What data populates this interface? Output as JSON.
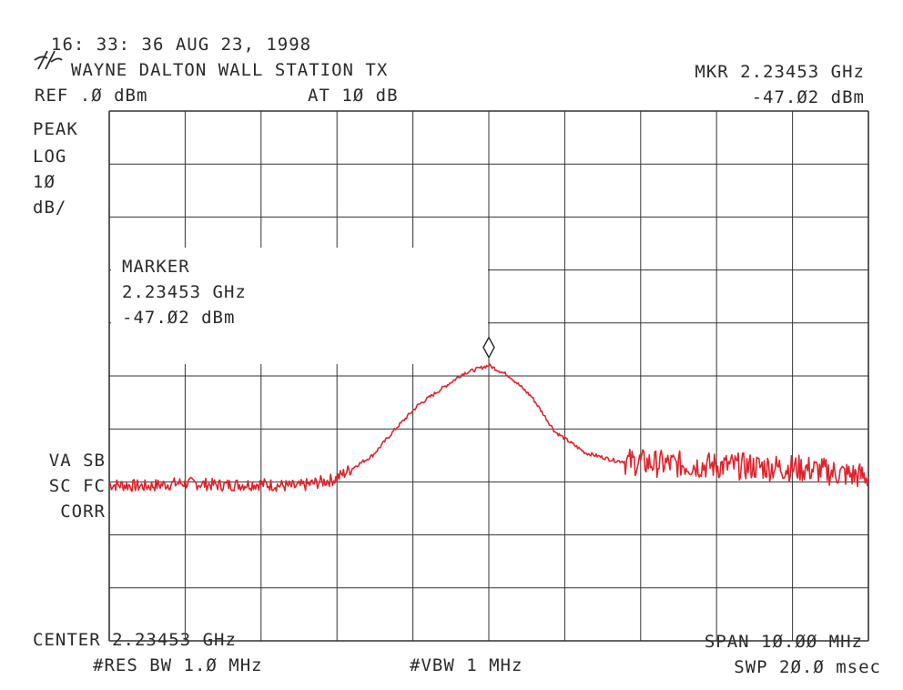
{
  "header": {
    "timestamp": "16: 33: 36 AUG 23, 1998",
    "title": "WAYNE DALTON WALL STATION TX",
    "ref_level": "REF .Ø dBm",
    "attenuation": "AT 1Ø dB",
    "marker_freq": "MKR 2.23453 GHz",
    "marker_level": "-47.Ø2 dBm"
  },
  "left_labels": {
    "detector": "PEAK",
    "scale": "LOG",
    "scale_value": "1Ø",
    "scale_unit": "dB/",
    "va_sb": "VA SB",
    "sc_fc": "SC FC",
    "corr": "CORR"
  },
  "marker_box": {
    "title": "MARKER",
    "freq": "2.23453 GHz",
    "level": "-47.Ø2 dBm"
  },
  "footer": {
    "center": "CENTER 2.23453 GHz",
    "span": "SPAN 1Ø.ØØ MHz",
    "res_bw": "#RES BW 1.Ø MHz",
    "vbw": "#VBW 1 MHz",
    "sweep": "SWP 2Ø.Ø msec"
  },
  "colors": {
    "trace": "#e0242c",
    "grid": "#333333",
    "text": "#2a2a2a"
  },
  "icons": {
    "logo": "hp-logo-icon",
    "marker": "diamond-marker-icon"
  },
  "chart_data": {
    "type": "line",
    "x_unit": "MHz",
    "y_unit": "dBm",
    "xlim": [
      2229.53,
      2239.53
    ],
    "ylim": [
      -100,
      0
    ],
    "grid": true,
    "divisions": {
      "x": 10,
      "y": 10
    },
    "marker": {
      "x": 2234.53,
      "y": -47.02
    },
    "series": [
      {
        "x": [
          2229.53,
          2230.0,
          2230.5,
          2231.0,
          2231.5,
          2232.0,
          2232.5,
          2233.0,
          2233.3,
          2233.6,
          2233.9,
          2234.2,
          2234.53,
          2234.8,
          2235.1,
          2235.4,
          2235.8,
          2236.2,
          2236.7,
          2237.2,
          2237.7,
          2238.2,
          2238.7,
          2239.2,
          2239.53
        ],
        "y": [
          -70.5,
          -70.8,
          -70.2,
          -70.6,
          -70.4,
          -70.9,
          -69.5,
          -65.0,
          -60.0,
          -55.5,
          -52.5,
          -49.5,
          -48.0,
          -50.0,
          -54.0,
          -60.5,
          -64.5,
          -66.0,
          -66.5,
          -66.8,
          -67.0,
          -67.2,
          -67.5,
          -68.5,
          -69.0
        ]
      }
    ]
  }
}
